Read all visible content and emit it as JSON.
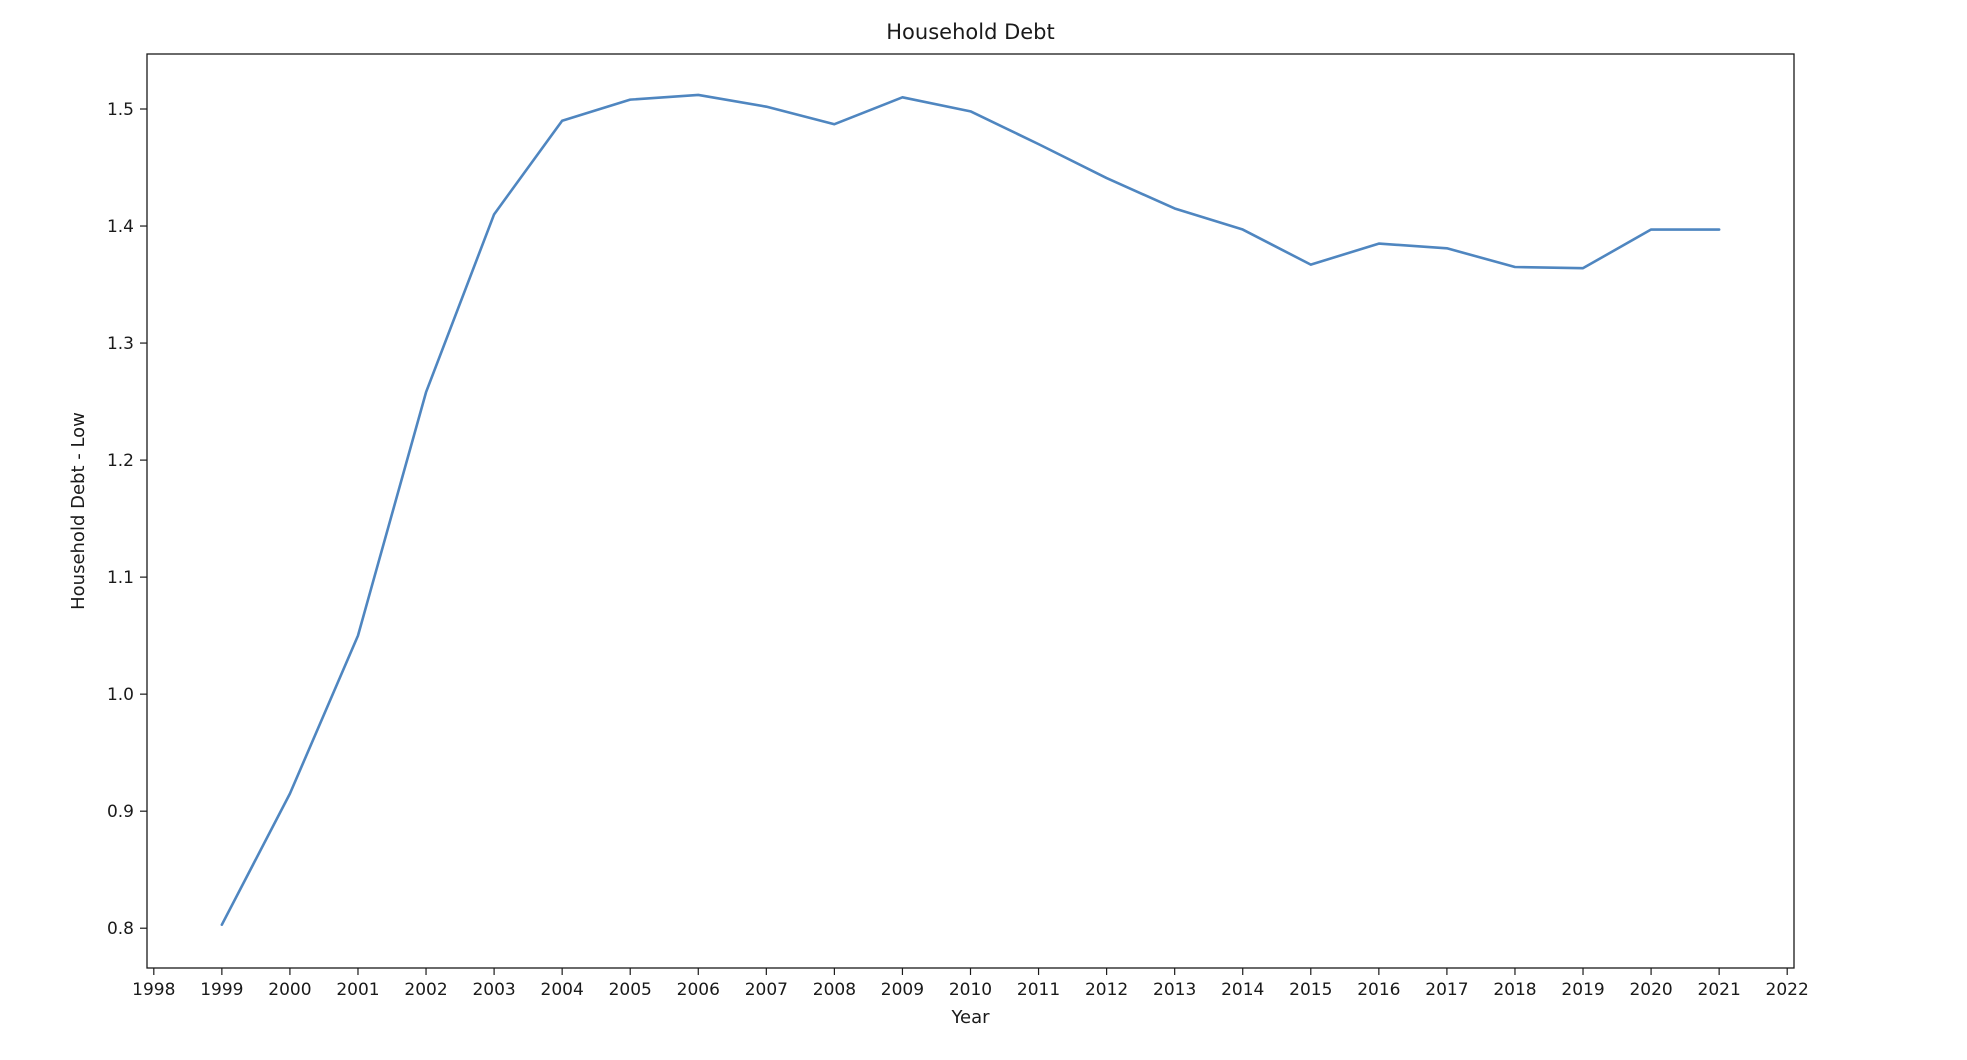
{
  "chart_data": {
    "type": "line",
    "title": "Household Debt",
    "xlabel": "Year",
    "ylabel": "Household Debt - Low",
    "xlim": [
      1997.9,
      2022.1
    ],
    "ylim": [
      0.766,
      1.547
    ],
    "x_ticks": [
      "1998",
      "1999",
      "2000",
      "2001",
      "2002",
      "2003",
      "2004",
      "2005",
      "2006",
      "2007",
      "2008",
      "2009",
      "2010",
      "2011",
      "2012",
      "2013",
      "2014",
      "2015",
      "2016",
      "2017",
      "2018",
      "2019",
      "2020",
      "2021",
      "2022"
    ],
    "y_ticks": [
      "0.8",
      "0.9",
      "1.0",
      "1.1",
      "1.2",
      "1.3",
      "1.4",
      "1.5"
    ],
    "grid": false,
    "legend": "none",
    "series": [
      {
        "color": "#4f86c0",
        "x": [
          1999,
          2000,
          2001,
          2002,
          2003,
          2004,
          2005,
          2006,
          2007,
          2008,
          2009,
          2010,
          2011,
          2012,
          2013,
          2014,
          2015,
          2016,
          2017,
          2018,
          2019,
          2020,
          2021
        ],
        "values": [
          0.803,
          0.915,
          1.05,
          1.258,
          1.41,
          1.49,
          1.508,
          1.512,
          1.502,
          1.487,
          1.51,
          1.498,
          1.47,
          1.441,
          1.415,
          1.397,
          1.367,
          1.385,
          1.381,
          1.365,
          1.364,
          1.397,
          1.397
        ]
      }
    ]
  }
}
